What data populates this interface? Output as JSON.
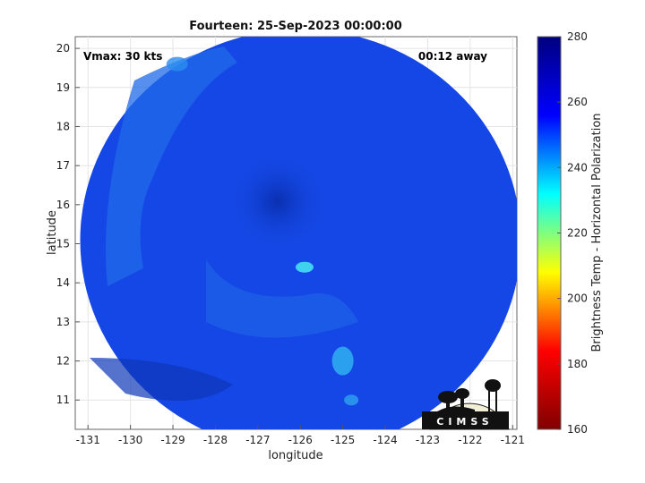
{
  "chart_data": {
    "type": "heatmap",
    "title": "Fourteen: 25-Sep-2023 00:00:00",
    "xlabel": "longitude",
    "ylabel": "latitude",
    "xlim": [
      -131.3,
      -120.9
    ],
    "ylim": [
      10.25,
      20.3
    ],
    "xticks": [
      -131,
      -130,
      -129,
      -128,
      -127,
      -126,
      -125,
      -124,
      -123,
      -122,
      -121
    ],
    "yticks": [
      11,
      12,
      13,
      14,
      15,
      16,
      17,
      18,
      19,
      20
    ],
    "grid": true,
    "colorbar": {
      "label": "Brightness Temp - Horizontal Polarization",
      "min": 160,
      "max": 280,
      "ticks": [
        160,
        180,
        200,
        220,
        240,
        260,
        280
      ],
      "colormap": [
        "#800000",
        "#ff0000",
        "#ffff00",
        "#00ffff",
        "#0000ff",
        "#000080"
      ]
    },
    "swath_center": [
      -126.1,
      15.2
    ],
    "features": [
      {
        "lon": -125.9,
        "lat": 14.4,
        "value": 238
      },
      {
        "lon": -125.0,
        "lat": 12.0,
        "value": 245
      },
      {
        "lon": -124.8,
        "lat": 11.0,
        "value": 248
      },
      {
        "lon": -128.9,
        "lat": 19.6,
        "value": 250
      }
    ],
    "annotations": {
      "vmax": "Vmax: 30 kts",
      "time_away": "00:12 away"
    }
  },
  "logo": {
    "text": "CIMSS"
  }
}
